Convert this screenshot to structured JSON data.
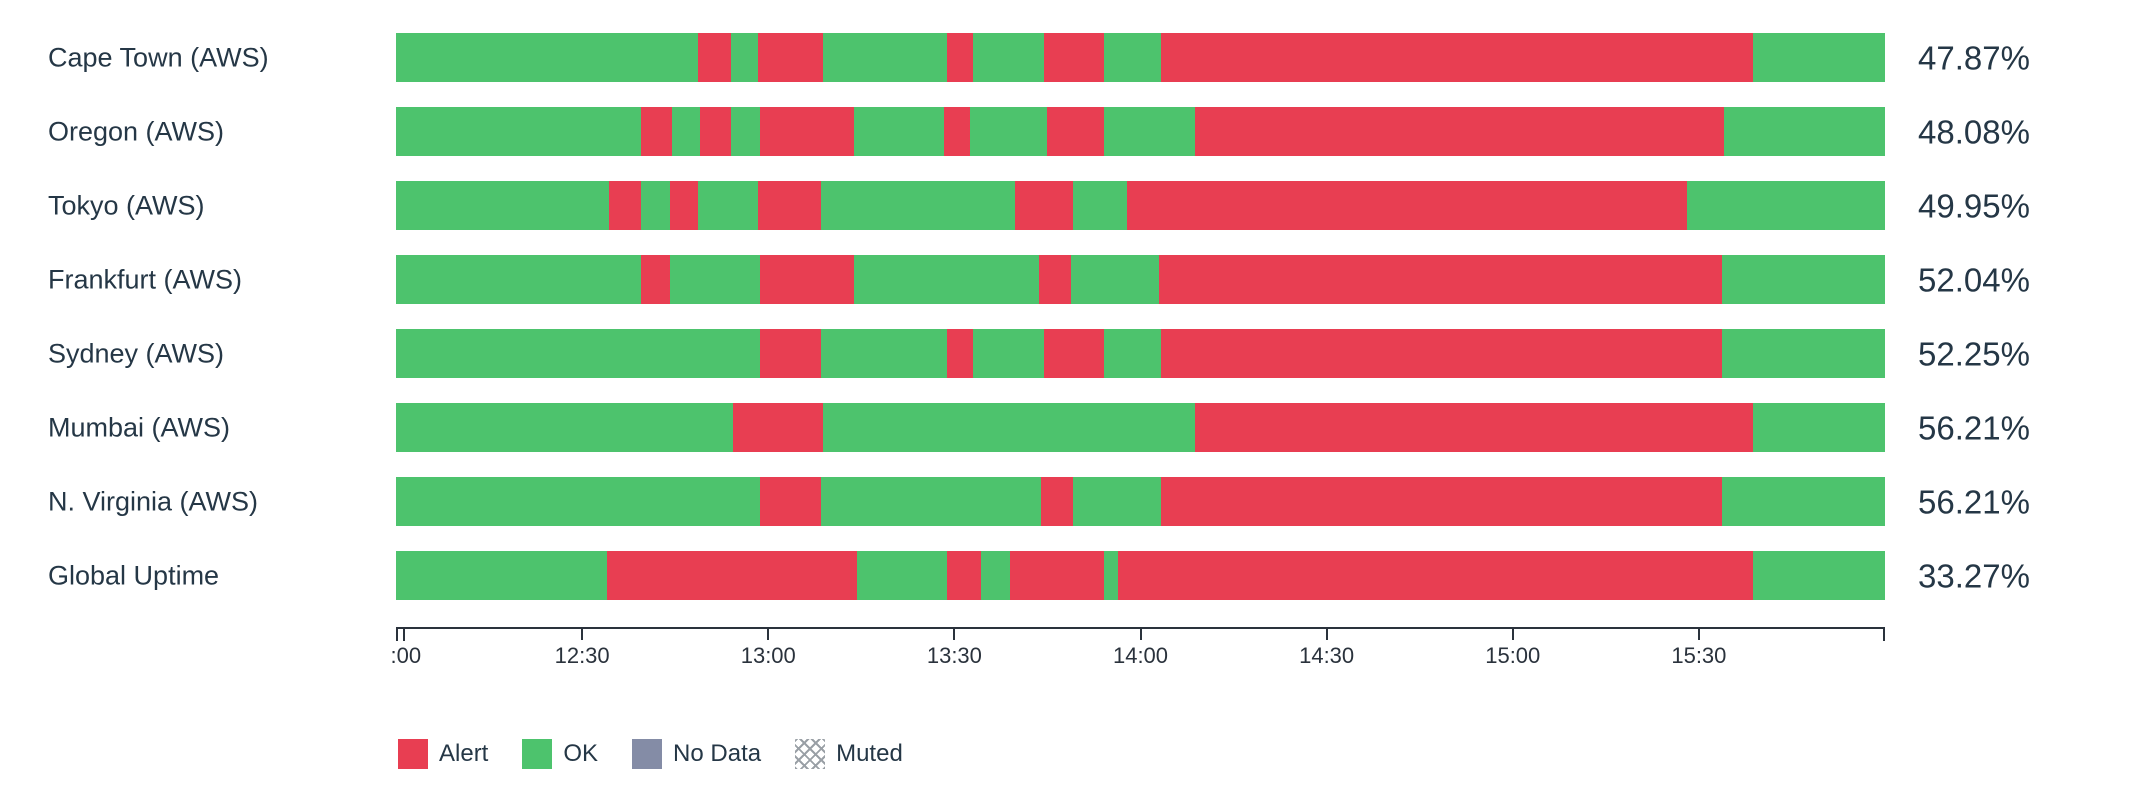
{
  "colors": {
    "alert": "#e83e52",
    "ok": "#4dc36d",
    "no_data": "#848ca6",
    "text": "#253746",
    "axis": "#2a323c"
  },
  "chart_data": {
    "type": "bar",
    "variant": "horizontal-status-timeline-stacked",
    "title": "",
    "xlabel": "",
    "ylabel": "",
    "grid": false,
    "legend_position": "bottom-left",
    "x_axis": {
      "start": "12:00",
      "end": "16:00",
      "ticks": [
        {
          "label": ":00",
          "pos_pct": 0
        },
        {
          "label": "12:30",
          "pos_pct": 12.5
        },
        {
          "label": "13:00",
          "pos_pct": 25
        },
        {
          "label": "13:30",
          "pos_pct": 37.5
        },
        {
          "label": "14:00",
          "pos_pct": 50
        },
        {
          "label": "14:30",
          "pos_pct": 62.5
        },
        {
          "label": "15:00",
          "pos_pct": 75
        },
        {
          "label": "15:30",
          "pos_pct": 87.5
        }
      ]
    },
    "rows": [
      {
        "label": "Cape Town (AWS)",
        "value": "47.87%",
        "segments": [
          {
            "status": "ok",
            "width_pct": 20.25
          },
          {
            "status": "alert",
            "width_pct": 2.28
          },
          {
            "status": "ok",
            "width_pct": 1.8
          },
          {
            "status": "alert",
            "width_pct": 4.35
          },
          {
            "status": "ok",
            "width_pct": 8.35
          },
          {
            "status": "alert",
            "width_pct": 1.74
          },
          {
            "status": "ok",
            "width_pct": 4.75
          },
          {
            "status": "alert",
            "width_pct": 4.01
          },
          {
            "status": "ok",
            "width_pct": 3.88
          },
          {
            "status": "alert",
            "width_pct": 39.7
          },
          {
            "status": "ok",
            "width_pct": 8.89
          }
        ]
      },
      {
        "label": "Oregon (AWS)",
        "value": "48.08%",
        "segments": [
          {
            "status": "ok",
            "width_pct": 16.44
          },
          {
            "status": "alert",
            "width_pct": 2.08
          },
          {
            "status": "ok",
            "width_pct": 1.93
          },
          {
            "status": "alert",
            "width_pct": 2.08
          },
          {
            "status": "ok",
            "width_pct": 1.94
          },
          {
            "status": "alert",
            "width_pct": 6.28
          },
          {
            "status": "ok",
            "width_pct": 6.08
          },
          {
            "status": "alert",
            "width_pct": 1.74
          },
          {
            "status": "ok",
            "width_pct": 5.15
          },
          {
            "status": "alert",
            "width_pct": 3.81
          },
          {
            "status": "ok",
            "width_pct": 6.15
          },
          {
            "status": "alert",
            "width_pct": 35.49
          },
          {
            "status": "ok",
            "width_pct": 10.83
          }
        ]
      },
      {
        "label": "Tokyo (AWS)",
        "value": "49.95%",
        "segments": [
          {
            "status": "ok",
            "width_pct": 14.3
          },
          {
            "status": "alert",
            "width_pct": 2.14
          },
          {
            "status": "ok",
            "width_pct": 1.94
          },
          {
            "status": "alert",
            "width_pct": 1.87
          },
          {
            "status": "ok",
            "width_pct": 4.08
          },
          {
            "status": "alert",
            "width_pct": 4.21
          },
          {
            "status": "ok",
            "width_pct": 13.04
          },
          {
            "status": "alert",
            "width_pct": 3.87
          },
          {
            "status": "ok",
            "width_pct": 3.68
          },
          {
            "status": "alert",
            "width_pct": 37.57
          },
          {
            "status": "ok",
            "width_pct": 13.3
          }
        ]
      },
      {
        "label": "Frankfurt (AWS)",
        "value": "52.04%",
        "segments": [
          {
            "status": "ok",
            "width_pct": 16.44
          },
          {
            "status": "alert",
            "width_pct": 1.94
          },
          {
            "status": "ok",
            "width_pct": 6.09
          },
          {
            "status": "alert",
            "width_pct": 6.28
          },
          {
            "status": "ok",
            "width_pct": 12.43
          },
          {
            "status": "alert",
            "width_pct": 2.14
          },
          {
            "status": "ok",
            "width_pct": 5.95
          },
          {
            "status": "alert",
            "width_pct": 37.77
          },
          {
            "status": "ok",
            "width_pct": 10.96
          }
        ]
      },
      {
        "label": "Sydney (AWS)",
        "value": "52.25%",
        "segments": [
          {
            "status": "ok",
            "width_pct": 24.47
          },
          {
            "status": "alert",
            "width_pct": 4.07
          },
          {
            "status": "ok",
            "width_pct": 8.49
          },
          {
            "status": "alert",
            "width_pct": 1.74
          },
          {
            "status": "ok",
            "width_pct": 4.75
          },
          {
            "status": "alert",
            "width_pct": 4.01
          },
          {
            "status": "ok",
            "width_pct": 3.88
          },
          {
            "status": "alert",
            "width_pct": 37.63
          },
          {
            "status": "ok",
            "width_pct": 10.96
          }
        ]
      },
      {
        "label": "Mumbai (AWS)",
        "value": "56.21%",
        "segments": [
          {
            "status": "ok",
            "width_pct": 22.6
          },
          {
            "status": "alert",
            "width_pct": 6.08
          },
          {
            "status": "ok",
            "width_pct": 25.0
          },
          {
            "status": "alert",
            "width_pct": 37.43
          },
          {
            "status": "ok",
            "width_pct": 8.89
          }
        ]
      },
      {
        "label": "N. Virginia (AWS)",
        "value": "56.21%",
        "segments": [
          {
            "status": "ok",
            "width_pct": 24.47
          },
          {
            "status": "alert",
            "width_pct": 4.07
          },
          {
            "status": "ok",
            "width_pct": 14.78
          },
          {
            "status": "alert",
            "width_pct": 2.13
          },
          {
            "status": "ok",
            "width_pct": 5.96
          },
          {
            "status": "alert",
            "width_pct": 37.63
          },
          {
            "status": "ok",
            "width_pct": 10.96
          }
        ]
      },
      {
        "label": "Global Uptime",
        "value": "33.27%",
        "segments": [
          {
            "status": "ok",
            "width_pct": 14.17
          },
          {
            "status": "alert",
            "width_pct": 16.78
          },
          {
            "status": "ok",
            "width_pct": 6.08
          },
          {
            "status": "alert",
            "width_pct": 2.27
          },
          {
            "status": "ok",
            "width_pct": 1.94
          },
          {
            "status": "alert",
            "width_pct": 6.29
          },
          {
            "status": "ok",
            "width_pct": 0.93
          },
          {
            "status": "alert",
            "width_pct": 42.65
          },
          {
            "status": "ok",
            "width_pct": 8.89
          }
        ]
      }
    ],
    "legend": [
      {
        "key": "alert",
        "label": "Alert",
        "color": "#e83e52"
      },
      {
        "key": "ok",
        "label": "OK",
        "color": "#4dc36d"
      },
      {
        "key": "no_data",
        "label": "No Data",
        "color": "#848ca6"
      },
      {
        "key": "muted",
        "label": "Muted",
        "pattern": "crosshatch"
      }
    ]
  }
}
